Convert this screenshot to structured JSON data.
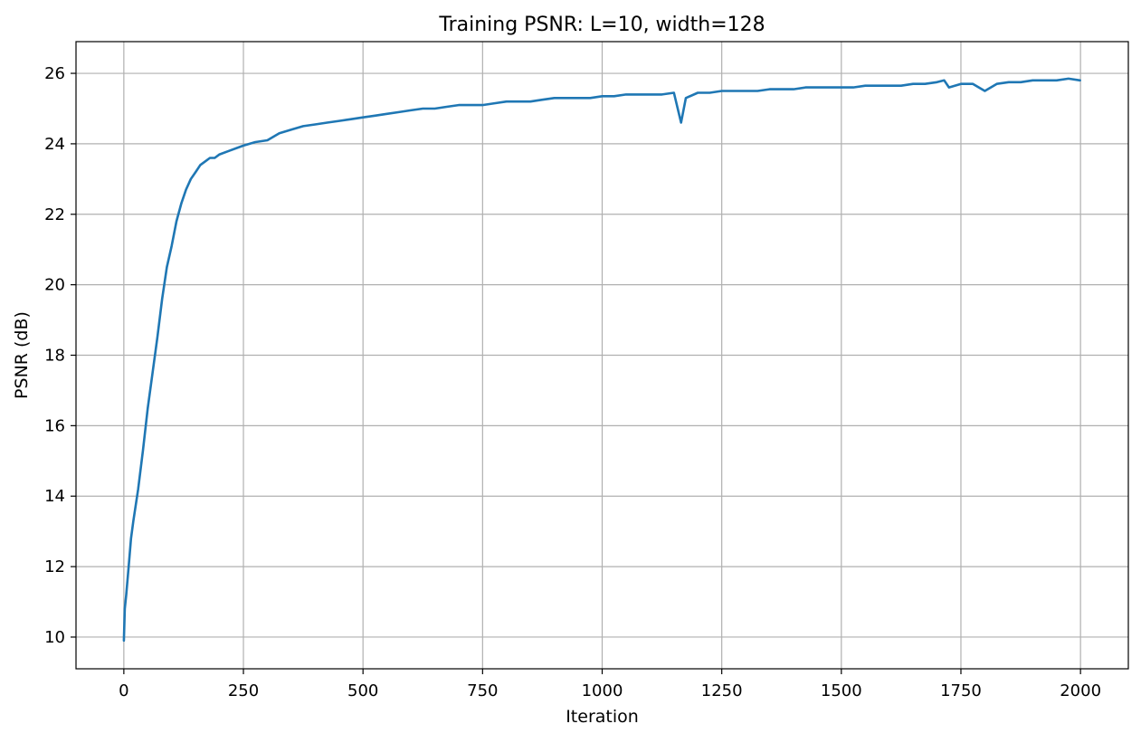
{
  "chart_data": {
    "type": "line",
    "title": "Training PSNR: L=10, width=128",
    "xlabel": "Iteration",
    "ylabel": "PSNR (dB)",
    "xlim": [
      -100,
      2100
    ],
    "ylim": [
      9.1,
      26.9
    ],
    "xticks": [
      0,
      250,
      500,
      750,
      1000,
      1250,
      1500,
      1750,
      2000
    ],
    "xtick_labels": [
      "0",
      "250",
      "500",
      "750",
      "1000",
      "1250",
      "1500",
      "1750",
      "2000"
    ],
    "yticks": [
      10,
      12,
      14,
      16,
      18,
      20,
      22,
      24,
      26
    ],
    "ytick_labels": [
      "10",
      "12",
      "14",
      "16",
      "18",
      "20",
      "22",
      "24",
      "26"
    ],
    "grid": true,
    "legend": "none",
    "line_color": "#1f77b4",
    "series": [
      {
        "x": [
          0,
          2,
          5,
          10,
          15,
          20,
          30,
          40,
          50,
          60,
          70,
          80,
          90,
          100,
          110,
          120,
          130,
          140,
          150,
          160,
          170,
          180,
          190,
          200,
          220,
          250,
          275,
          300,
          325,
          350,
          375,
          400,
          425,
          450,
          475,
          500,
          525,
          550,
          575,
          600,
          625,
          650,
          675,
          700,
          725,
          750,
          775,
          800,
          825,
          850,
          875,
          900,
          925,
          950,
          975,
          1000,
          1025,
          1050,
          1075,
          1100,
          1125,
          1150,
          1165,
          1175,
          1200,
          1225,
          1250,
          1275,
          1300,
          1325,
          1350,
          1375,
          1400,
          1425,
          1450,
          1475,
          1500,
          1525,
          1550,
          1575,
          1600,
          1625,
          1650,
          1675,
          1700,
          1715,
          1725,
          1750,
          1775,
          1800,
          1825,
          1850,
          1875,
          1900,
          1925,
          1950,
          1975,
          1999
        ],
        "y": [
          9.9,
          10.8,
          11.2,
          12.0,
          12.8,
          13.3,
          14.2,
          15.3,
          16.5,
          17.5,
          18.5,
          19.6,
          20.5,
          21.1,
          21.8,
          22.3,
          22.7,
          23.0,
          23.2,
          23.4,
          23.5,
          23.6,
          23.6,
          23.7,
          23.8,
          23.95,
          24.05,
          24.1,
          24.3,
          24.4,
          24.5,
          24.55,
          24.6,
          24.65,
          24.7,
          24.75,
          24.8,
          24.85,
          24.9,
          24.95,
          25.0,
          25.0,
          25.05,
          25.1,
          25.1,
          25.1,
          25.15,
          25.2,
          25.2,
          25.2,
          25.25,
          25.3,
          25.3,
          25.3,
          25.3,
          25.35,
          25.35,
          25.4,
          25.4,
          25.4,
          25.4,
          25.45,
          24.6,
          25.3,
          25.45,
          25.45,
          25.5,
          25.5,
          25.5,
          25.5,
          25.55,
          25.55,
          25.55,
          25.6,
          25.6,
          25.6,
          25.6,
          25.6,
          25.65,
          25.65,
          25.65,
          25.65,
          25.7,
          25.7,
          25.75,
          25.8,
          25.6,
          25.7,
          25.7,
          25.5,
          25.7,
          25.75,
          25.75,
          25.8,
          25.8,
          25.8,
          25.85,
          25.8
        ]
      }
    ]
  }
}
